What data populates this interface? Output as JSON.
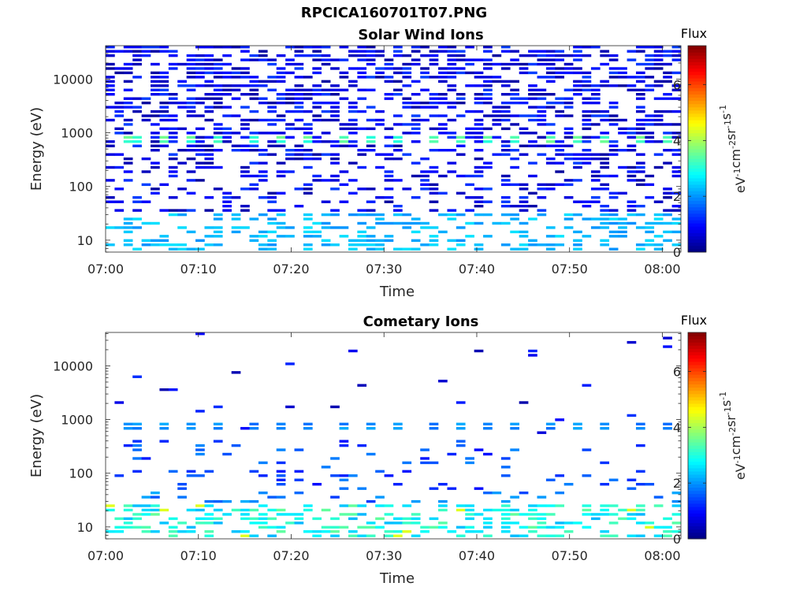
{
  "figure": {
    "title": "RPCICA160701T07.PNG"
  },
  "colorbar": {
    "label": "Flux",
    "unit_base": "eV",
    "unit_parts": [
      {
        "t": "eV",
        "sup": "-1"
      },
      {
        "t": "cm",
        "sup": "-2"
      },
      {
        "t": "sr",
        "sup": "-1"
      },
      {
        "t": "s",
        "sup": "-1"
      }
    ],
    "range": [
      0,
      7.4
    ],
    "ticks": [
      "0",
      "2",
      "4",
      "6"
    ],
    "colormap": "jet"
  },
  "chart_data": [
    {
      "type": "heatmap",
      "title": "Solar Wind Ions",
      "xlabel": "Time",
      "ylabel": "Energy (eV)",
      "yscale": "log",
      "ylim": [
        6,
        42000
      ],
      "xlim": [
        "07:00",
        "08:02"
      ],
      "x_ticks": [
        "07:00",
        "07:10",
        "07:20",
        "07:30",
        "07:40",
        "07:50",
        "08:00"
      ],
      "y_ticks": [
        "10",
        "100",
        "1000",
        "10000"
      ],
      "bins_time": 64,
      "bins_energy": 48,
      "flux_pattern": {
        "high_energy_band": [
          30,
          42000
        ],
        "high_energy_typical_flux": 1.0,
        "peak_energy": [
          600,
          900
        ],
        "peak_flux": 3.3,
        "peak_period_min": 3.2,
        "low_energy_band": [
          6,
          30
        ],
        "low_energy_typical_flux": 2.6
      }
    },
    {
      "type": "heatmap",
      "title": "Cometary Ions",
      "xlabel": "Time",
      "ylabel": "Energy (eV)",
      "yscale": "log",
      "ylim": [
        6,
        42000
      ],
      "xlim": [
        "07:00",
        "08:02"
      ],
      "x_ticks": [
        "07:00",
        "07:10",
        "07:20",
        "07:30",
        "07:40",
        "07:50",
        "08:00"
      ],
      "y_ticks": [
        "10",
        "100",
        "1000",
        "10000"
      ],
      "bins_time": 64,
      "bins_energy": 48,
      "flux_pattern": {
        "sparse_high_energy_flux": 1.0,
        "peak_energy": [
          600,
          900
        ],
        "peak_flux": 2.0,
        "peak_period_min": 3.2,
        "mid_energy_band": [
          50,
          400
        ],
        "mid_energy_typical_flux": 1.6,
        "low_energy_band": [
          6,
          25
        ],
        "low_energy_typical_flux": 3.2,
        "max_flux": 4.4
      }
    }
  ]
}
